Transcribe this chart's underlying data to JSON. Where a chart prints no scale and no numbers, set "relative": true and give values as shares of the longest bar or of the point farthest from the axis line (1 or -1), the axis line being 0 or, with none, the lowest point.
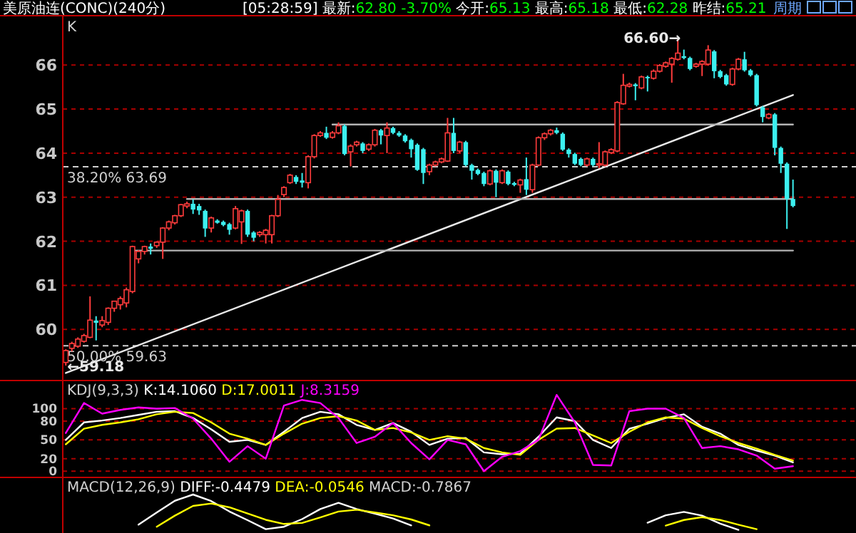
{
  "chart_data": [
    {
      "type": "candlestick",
      "title": "美原油连(CONC)(240分)",
      "subtitle": "[05:28:59] 最新:62.80 -3.70% 今开:65.13 最高:65.18 最低:62.28 昨结:65.21",
      "categories": [
        null,
        null,
        null,
        null,
        null,
        null,
        null,
        null,
        null,
        null,
        null,
        null,
        null,
        null,
        null,
        null,
        null,
        null,
        null,
        null,
        null,
        null,
        null,
        null,
        null,
        null,
        null,
        null,
        null,
        null,
        null,
        null,
        null,
        null,
        null,
        null,
        null,
        null,
        null,
        null,
        null,
        null,
        null,
        null,
        null,
        null,
        null,
        null,
        null,
        null,
        null,
        null,
        null,
        null,
        null,
        null,
        null,
        null,
        null,
        null,
        null,
        null,
        null,
        null,
        null,
        null,
        null,
        null,
        null,
        null,
        null,
        null,
        null,
        null,
        null,
        null,
        null,
        null,
        null,
        null,
        null,
        null,
        null,
        null,
        null,
        null,
        null,
        null,
        null,
        null,
        null,
        null,
        null,
        null,
        null,
        null,
        null,
        null,
        null,
        null,
        null,
        null,
        null,
        null,
        null,
        null,
        null,
        null,
        null,
        null,
        null,
        null,
        null,
        null,
        null,
        null,
        null,
        null,
        null,
        null,
        null
      ],
      "ohlc": [
        [
          59.25,
          59.55,
          59.18,
          59.52
        ],
        [
          59.57,
          59.72,
          59.5,
          59.68
        ],
        [
          59.62,
          59.82,
          59.58,
          59.78
        ],
        [
          59.73,
          59.9,
          59.7,
          59.86
        ],
        [
          59.82,
          60.75,
          59.8,
          60.21
        ],
        [
          60.2,
          60.3,
          59.75,
          60.15
        ],
        [
          60.1,
          60.3,
          60.05,
          60.2
        ],
        [
          60.16,
          60.5,
          60.1,
          60.48
        ],
        [
          60.48,
          60.65,
          60.4,
          60.64
        ],
        [
          60.56,
          60.75,
          60.45,
          60.7
        ],
        [
          60.6,
          60.95,
          60.5,
          60.9
        ],
        [
          60.86,
          61.9,
          60.82,
          61.88
        ],
        [
          61.6,
          61.8,
          61.5,
          61.77
        ],
        [
          61.77,
          61.9,
          61.7,
          61.88
        ],
        [
          61.88,
          61.95,
          61.7,
          61.83
        ],
        [
          61.9,
          62.0,
          61.85,
          61.98
        ],
        [
          61.98,
          62.32,
          61.6,
          62.3
        ],
        [
          62.3,
          62.47,
          62.25,
          62.44
        ],
        [
          62.42,
          62.6,
          62.38,
          62.58
        ],
        [
          62.58,
          62.85,
          62.55,
          62.83
        ],
        [
          62.8,
          62.9,
          62.75,
          62.85
        ],
        [
          62.85,
          62.95,
          62.62,
          62.72
        ],
        [
          62.8,
          62.85,
          62.6,
          62.7
        ],
        [
          62.69,
          62.72,
          62.1,
          62.29
        ],
        [
          62.3,
          62.56,
          62.2,
          62.53
        ],
        [
          62.47,
          62.5,
          62.4,
          62.42
        ],
        [
          62.44,
          62.47,
          62.34,
          62.37
        ],
        [
          62.39,
          62.42,
          62.15,
          62.26
        ],
        [
          62.3,
          62.8,
          62.27,
          62.74
        ],
        [
          62.44,
          62.72,
          61.94,
          62.69
        ],
        [
          62.69,
          62.72,
          62.1,
          62.15
        ],
        [
          62.2,
          62.23,
          62.0,
          62.08
        ],
        [
          62.15,
          62.23,
          62.1,
          62.2
        ],
        [
          62.15,
          62.28,
          61.95,
          62.25
        ],
        [
          62.15,
          62.6,
          61.95,
          62.58
        ],
        [
          62.58,
          63.05,
          62.55,
          62.95
        ],
        [
          63.06,
          63.25,
          63.0,
          63.22
        ],
        [
          63.33,
          63.53,
          63.3,
          63.5
        ],
        [
          63.46,
          63.5,
          63.3,
          63.35
        ],
        [
          63.38,
          63.55,
          63.22,
          63.33
        ],
        [
          63.33,
          63.95,
          63.2,
          63.92
        ],
        [
          63.92,
          64.43,
          63.88,
          64.4
        ],
        [
          64.4,
          64.5,
          64.37,
          64.46
        ],
        [
          64.46,
          64.6,
          64.32,
          64.35
        ],
        [
          64.36,
          64.5,
          64.33,
          64.46
        ],
        [
          64.46,
          64.7,
          64.43,
          64.62
        ],
        [
          64.62,
          64.65,
          63.95,
          63.98
        ],
        [
          64.03,
          64.2,
          63.7,
          64.16
        ],
        [
          64.19,
          64.28,
          64.15,
          64.25
        ],
        [
          64.22,
          64.25,
          64.0,
          64.05
        ],
        [
          64.09,
          64.22,
          64.05,
          64.19
        ],
        [
          64.19,
          64.55,
          64.15,
          64.52
        ],
        [
          64.52,
          64.55,
          64.2,
          64.4
        ],
        [
          64.4,
          64.7,
          64.0,
          64.57
        ],
        [
          64.57,
          64.6,
          64.43,
          64.46
        ],
        [
          64.46,
          64.5,
          64.37,
          64.4
        ],
        [
          64.4,
          64.43,
          64.24,
          64.27
        ],
        [
          64.3,
          64.33,
          63.9,
          64.09
        ],
        [
          64.19,
          64.22,
          63.6,
          63.62
        ],
        [
          64.09,
          64.12,
          63.3,
          63.55
        ],
        [
          63.58,
          63.76,
          63.5,
          63.73
        ],
        [
          63.73,
          63.83,
          63.7,
          63.8
        ],
        [
          63.8,
          63.9,
          63.77,
          63.87
        ],
        [
          63.82,
          64.8,
          63.8,
          64.46
        ],
        [
          64.46,
          64.8,
          64.0,
          64.05
        ],
        [
          64.05,
          64.28,
          64.0,
          64.25
        ],
        [
          64.25,
          64.28,
          63.7,
          63.73
        ],
        [
          63.73,
          63.76,
          63.4,
          63.6
        ],
        [
          63.62,
          63.65,
          63.5,
          63.53
        ],
        [
          63.55,
          63.58,
          63.25,
          63.3
        ],
        [
          63.3,
          63.63,
          63.27,
          63.6
        ],
        [
          63.6,
          63.63,
          63.0,
          63.33
        ],
        [
          63.33,
          63.63,
          63.3,
          63.6
        ],
        [
          63.58,
          63.61,
          63.27,
          63.3
        ],
        [
          63.32,
          63.35,
          63.25,
          63.28
        ],
        [
          63.28,
          63.42,
          63.1,
          63.39
        ],
        [
          63.41,
          63.9,
          63.05,
          63.17
        ],
        [
          63.17,
          63.76,
          63.1,
          63.73
        ],
        [
          63.73,
          64.38,
          63.7,
          64.35
        ],
        [
          64.35,
          64.47,
          64.3,
          64.44
        ],
        [
          64.44,
          64.55,
          64.4,
          64.52
        ],
        [
          64.52,
          64.58,
          64.43,
          64.46
        ],
        [
          64.44,
          64.47,
          64.05,
          64.08
        ],
        [
          64.08,
          64.11,
          63.9,
          63.98
        ],
        [
          63.98,
          64.01,
          63.73,
          63.76
        ],
        [
          63.87,
          63.9,
          63.7,
          63.73
        ],
        [
          63.73,
          63.9,
          63.7,
          63.87
        ],
        [
          63.87,
          63.9,
          63.7,
          63.73
        ],
        [
          63.73,
          64.25,
          63.66,
          63.76
        ],
        [
          63.73,
          64.06,
          63.7,
          64.03
        ],
        [
          64.01,
          64.11,
          63.98,
          64.08
        ],
        [
          64.05,
          65.18,
          64.02,
          65.15
        ],
        [
          65.12,
          65.8,
          65.1,
          65.54
        ],
        [
          65.52,
          65.6,
          65.49,
          65.56
        ],
        [
          65.56,
          65.59,
          65.2,
          65.52
        ],
        [
          65.48,
          65.76,
          65.45,
          65.73
        ],
        [
          65.73,
          65.76,
          65.4,
          65.7
        ],
        [
          65.7,
          65.9,
          65.67,
          65.86
        ],
        [
          65.86,
          66.02,
          65.83,
          65.99
        ],
        [
          65.97,
          66.08,
          65.94,
          66.05
        ],
        [
          66.02,
          66.18,
          65.6,
          66.15
        ],
        [
          66.13,
          66.6,
          66.1,
          66.27
        ],
        [
          66.2,
          66.35,
          66.13,
          66.16
        ],
        [
          66.16,
          66.19,
          65.88,
          65.91
        ],
        [
          65.97,
          66.05,
          65.94,
          66.02
        ],
        [
          66.02,
          66.11,
          65.75,
          66.08
        ],
        [
          66.02,
          66.45,
          65.99,
          66.34
        ],
        [
          66.31,
          66.34,
          65.7,
          65.86
        ],
        [
          65.86,
          65.89,
          65.7,
          65.73
        ],
        [
          65.77,
          65.8,
          65.53,
          65.56
        ],
        [
          65.56,
          65.94,
          65.53,
          65.91
        ],
        [
          65.91,
          66.16,
          65.88,
          66.13
        ],
        [
          66.13,
          66.3,
          65.85,
          65.88
        ],
        [
          65.88,
          65.91,
          65.74,
          65.77
        ],
        [
          65.77,
          65.8,
          65.06,
          65.09
        ],
        [
          65.04,
          65.07,
          64.7,
          64.82
        ],
        [
          64.8,
          64.91,
          64.77,
          64.88
        ],
        [
          64.88,
          64.91,
          63.95,
          64.12
        ],
        [
          64.12,
          64.15,
          63.55,
          63.76
        ],
        [
          63.76,
          63.79,
          62.28,
          62.96
        ],
        [
          62.96,
          63.4,
          62.77,
          62.8
        ]
      ],
      "series": [
        {
          "type": "line",
          "color": "#e8e8e8",
          "values": [
            59.01,
            null,
            null,
            null,
            null,
            null,
            null,
            null,
            null,
            null,
            null,
            null,
            null,
            null,
            null,
            null,
            null,
            null,
            null,
            null,
            null,
            null,
            null,
            null,
            null,
            null,
            null,
            null,
            null,
            null,
            null,
            null,
            null,
            null,
            null,
            null,
            null,
            null,
            null,
            null,
            null,
            null,
            null,
            null,
            null,
            null,
            null,
            null,
            null,
            null,
            null,
            null,
            null,
            null,
            null,
            null,
            null,
            null,
            null,
            null,
            null,
            null,
            null,
            null,
            null,
            null,
            null,
            null,
            null,
            null,
            null,
            null,
            null,
            null,
            null,
            null,
            null,
            null,
            null,
            null,
            null,
            null,
            null,
            null,
            null,
            null,
            null,
            null,
            null,
            null,
            null,
            null,
            null,
            null,
            null,
            null,
            null,
            null,
            null,
            null,
            null,
            null,
            null,
            null,
            null,
            null,
            null,
            null,
            null,
            null,
            null,
            null,
            null,
            null,
            null,
            null,
            null,
            null,
            null,
            null,
            65.32
          ]
        },
        {
          "type": "line",
          "color": "#b4b4b4",
          "values": [
            null,
            null,
            null,
            null,
            null,
            null,
            null,
            null,
            null,
            null,
            null,
            61.79,
            null,
            null,
            null,
            null,
            null,
            null,
            null,
            null,
            null,
            null,
            null,
            null,
            null,
            null,
            null,
            null,
            null,
            null,
            null,
            null,
            null,
            null,
            null,
            null,
            null,
            null,
            null,
            null,
            null,
            null,
            null,
            null,
            null,
            null,
            null,
            null,
            null,
            null,
            null,
            null,
            null,
            null,
            null,
            null,
            null,
            null,
            null,
            null,
            null,
            null,
            null,
            null,
            null,
            null,
            null,
            null,
            null,
            null,
            null,
            null,
            null,
            null,
            null,
            null,
            null,
            null,
            null,
            null,
            null,
            null,
            null,
            null,
            null,
            null,
            null,
            null,
            null,
            null,
            null,
            null,
            null,
            null,
            null,
            null,
            null,
            null,
            null,
            null,
            null,
            null,
            null,
            null,
            null,
            null,
            null,
            null,
            null,
            null,
            null,
            null,
            null,
            null,
            null,
            null,
            null,
            null,
            null,
            null,
            61.79
          ]
        },
        {
          "type": "line",
          "color": "#b4b4b4",
          "values": [
            null,
            null,
            null,
            null,
            null,
            null,
            null,
            null,
            null,
            null,
            null,
            null,
            null,
            null,
            null,
            null,
            null,
            null,
            null,
            null,
            62.96,
            null,
            null,
            null,
            null,
            null,
            null,
            null,
            null,
            null,
            null,
            null,
            null,
            null,
            null,
            null,
            null,
            null,
            null,
            null,
            null,
            null,
            null,
            null,
            null,
            null,
            null,
            null,
            null,
            null,
            null,
            null,
            null,
            null,
            null,
            null,
            null,
            null,
            null,
            null,
            null,
            null,
            null,
            null,
            null,
            null,
            null,
            null,
            null,
            null,
            null,
            null,
            null,
            null,
            null,
            null,
            null,
            null,
            null,
            null,
            null,
            null,
            null,
            null,
            null,
            null,
            null,
            null,
            null,
            null,
            null,
            null,
            null,
            null,
            null,
            null,
            null,
            null,
            null,
            null,
            null,
            null,
            null,
            null,
            null,
            null,
            null,
            null,
            null,
            null,
            null,
            null,
            null,
            null,
            null,
            null,
            null,
            null,
            null,
            null,
            62.96
          ]
        },
        {
          "type": "line",
          "color": "#b4b4b4",
          "values": [
            null,
            null,
            null,
            null,
            null,
            null,
            null,
            null,
            null,
            null,
            null,
            null,
            null,
            null,
            null,
            null,
            null,
            null,
            null,
            null,
            null,
            null,
            null,
            null,
            null,
            null,
            null,
            null,
            null,
            null,
            null,
            null,
            null,
            null,
            null,
            null,
            null,
            null,
            null,
            null,
            null,
            null,
            null,
            null,
            64.65,
            null,
            null,
            null,
            null,
            null,
            null,
            null,
            null,
            null,
            null,
            null,
            null,
            null,
            null,
            null,
            null,
            null,
            null,
            null,
            null,
            null,
            null,
            null,
            null,
            null,
            null,
            null,
            null,
            null,
            null,
            null,
            null,
            null,
            null,
            null,
            null,
            null,
            null,
            null,
            null,
            null,
            null,
            null,
            null,
            null,
            null,
            null,
            null,
            null,
            null,
            null,
            null,
            null,
            null,
            null,
            null,
            null,
            null,
            null,
            null,
            null,
            null,
            null,
            null,
            null,
            null,
            null,
            null,
            null,
            null,
            null,
            null,
            null,
            null,
            null,
            64.65
          ]
        }
      ],
      "ylim": [
        58.84,
        67.12
      ],
      "yticks": [
        60,
        61,
        62,
        63,
        64,
        65,
        66
      ],
      "grid": "y",
      "ref_lines": [
        {
          "axis": "y",
          "value": 63.69,
          "label": "38.20% 63.69",
          "color": "#d0d0d0",
          "line_style": "dashed"
        },
        {
          "axis": "y",
          "value": 59.63,
          "label": "50.00% 59.63",
          "color": "#d0d0d0",
          "line_style": "dashed"
        }
      ],
      "annotations": [
        "K",
        "周期",
        "66.60→",
        "←59.18"
      ]
    },
    {
      "type": "line",
      "title": "KDJ(9,3,3)",
      "grid": "y",
      "tick_labels": "y",
      "ylim": [
        -10,
        145
      ],
      "yticks": [
        0,
        20,
        50,
        80,
        100
      ],
      "categories": [
        null,
        null,
        null,
        null,
        null,
        null,
        null,
        null,
        null,
        null,
        null,
        null,
        null,
        null,
        null,
        null,
        null,
        null,
        null,
        null,
        null,
        null,
        null,
        null,
        null,
        null,
        null,
        null,
        null,
        null,
        null,
        null,
        null,
        null,
        null,
        null,
        null,
        null,
        null,
        null,
        null
      ],
      "series": [
        {
          "name": "K:14.1060",
          "color": "#ffffff",
          "values": [
            50,
            78,
            81,
            85,
            90,
            95,
            96,
            85,
            67,
            47,
            50,
            42,
            63,
            85,
            95,
            91,
            74,
            66,
            77,
            63,
            42,
            52,
            53,
            30,
            27,
            28,
            55,
            86,
            80,
            50,
            37,
            68,
            76,
            85,
            91,
            71,
            60,
            42,
            33,
            25,
            14
          ]
        },
        {
          "name": "D:17.0011",
          "color": "#ffff00",
          "values": [
            43,
            68,
            74,
            78,
            83,
            91,
            95,
            93,
            78,
            60,
            52,
            42,
            60,
            76,
            85,
            88,
            81,
            66,
            69,
            62,
            50,
            56,
            52,
            37,
            30,
            26,
            50,
            68,
            69,
            57,
            45,
            63,
            78,
            86,
            84,
            69,
            56,
            45,
            36,
            26,
            17
          ]
        },
        {
          "name": "J:8.3159",
          "color": "#ff00ff",
          "values": [
            61,
            109,
            92,
            98,
            102,
            100,
            101,
            84,
            52,
            15,
            40,
            20,
            105,
            114,
            109,
            85,
            45,
            55,
            77,
            45,
            19,
            50,
            43,
            0,
            23,
            32,
            50,
            122,
            78,
            10,
            9,
            96,
            100,
            100,
            85,
            37,
            40,
            35,
            25,
            4,
            8
          ]
        }
      ]
    },
    {
      "type": "line",
      "title": "MACD(12,26,9)",
      "relative": true,
      "categories": [
        null,
        null,
        null,
        null,
        null,
        null,
        null,
        null,
        null,
        null,
        null,
        null,
        null,
        null,
        null,
        null,
        null
      ],
      "series": [
        {
          "name": "DIFF:-0.4479",
          "color": "#ffffff",
          "values": [
            0.13,
            0.48,
            0.82,
            1,
            0.81,
            0.51,
            0.26,
            0,
            0.07,
            0.29,
            0.58,
            0.76,
            0.58,
            0.45,
            0.31,
            0.11,
            null
          ]
        },
        {
          "name": "DEA:-0.0546",
          "color": "#ffff00",
          "values": [
            null,
            0.07,
            0.39,
            0.67,
            0.74,
            0.63,
            0.45,
            0.27,
            0.15,
            0.18,
            0.34,
            0.51,
            0.56,
            0.48,
            0.4,
            0.28,
            0.11
          ]
        }
      ],
      "annotations": [
        "MACD:-0.7867"
      ]
    },
    {
      "type": "line",
      "relative": true,
      "categories": [
        null,
        null,
        null,
        null,
        null,
        null,
        null
      ],
      "series": [
        {
          "color": "#ffffff",
          "values": [
            0.4,
            0.81,
            1,
            0.79,
            0.35,
            0,
            null
          ]
        },
        {
          "color": "#ffff00",
          "values": [
            null,
            0.24,
            0.55,
            0.71,
            0.55,
            0.29,
            0.04
          ]
        }
      ]
    }
  ]
}
